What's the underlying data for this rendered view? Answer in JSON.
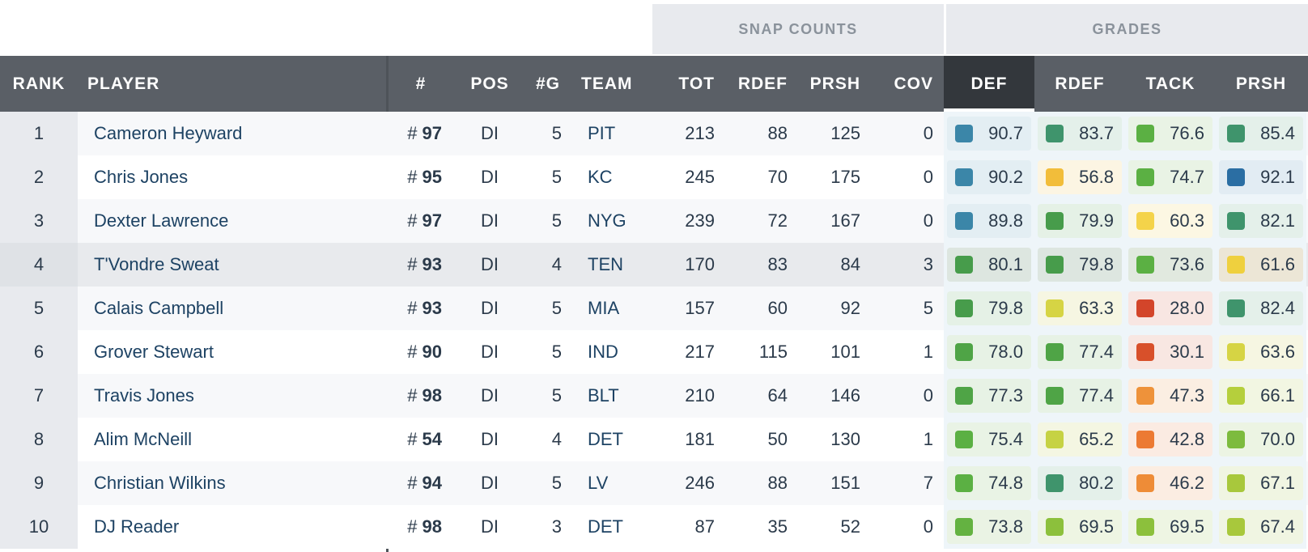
{
  "group_headers": {
    "snap_counts": "SNAP COUNTS",
    "grades": "GRADES"
  },
  "columns": {
    "rank": "RANK",
    "player": "PLAYER",
    "number": "#",
    "pos": "POS",
    "games": "#G",
    "team": "TEAM",
    "tot": "TOT",
    "rdef": "RDEF",
    "prsh": "PRSH",
    "cov": "COV",
    "g_def": "DEF",
    "g_rdef": "RDEF",
    "g_tack": "TACK",
    "g_prsh": "PRSH"
  },
  "active_sort_column": "DEF",
  "rows": [
    {
      "rank": "1",
      "player": "Cameron Heyward",
      "hash": "#",
      "number": "97",
      "pos": "DI",
      "games": "5",
      "team": "PIT",
      "tot": "213",
      "rdef": "88",
      "prsh": "125",
      "cov": "0",
      "grades": [
        {
          "v": "90.7",
          "c": "#3b86a8",
          "bg": "#e3eef3"
        },
        {
          "v": "83.7",
          "c": "#3f946c",
          "bg": "#e4f0ea"
        },
        {
          "v": "76.6",
          "c": "#5bb043",
          "bg": "#e9f3e5"
        },
        {
          "v": "85.4",
          "c": "#3f946c",
          "bg": "#e4f0ea"
        }
      ]
    },
    {
      "rank": "2",
      "player": "Chris Jones",
      "hash": "#",
      "number": "95",
      "pos": "DI",
      "games": "5",
      "team": "KC",
      "tot": "245",
      "rdef": "70",
      "prsh": "175",
      "cov": "0",
      "grades": [
        {
          "v": "90.2",
          "c": "#3b86a8",
          "bg": "#e3eef3"
        },
        {
          "v": "56.8",
          "c": "#f2bd3a",
          "bg": "#fcf5e3"
        },
        {
          "v": "74.7",
          "c": "#5bb043",
          "bg": "#e9f3e5"
        },
        {
          "v": "92.1",
          "c": "#2b6ea3",
          "bg": "#e2ecf3"
        }
      ]
    },
    {
      "rank": "3",
      "player": "Dexter Lawrence",
      "hash": "#",
      "number": "97",
      "pos": "DI",
      "games": "5",
      "team": "NYG",
      "tot": "239",
      "rdef": "72",
      "prsh": "167",
      "cov": "0",
      "grades": [
        {
          "v": "89.8",
          "c": "#3b86a8",
          "bg": "#e3eef3"
        },
        {
          "v": "79.9",
          "c": "#479c4b",
          "bg": "#e5f1e6"
        },
        {
          "v": "60.3",
          "c": "#f4d34a",
          "bg": "#fcf7e3"
        },
        {
          "v": "82.1",
          "c": "#3f946c",
          "bg": "#e4f0ea"
        }
      ]
    },
    {
      "rank": "4",
      "player": "T'Vondre Sweat",
      "hash": "#",
      "number": "93",
      "pos": "DI",
      "games": "4",
      "team": "TEN",
      "tot": "170",
      "rdef": "83",
      "prsh": "84",
      "cov": "3",
      "grades": [
        {
          "v": "80.1",
          "c": "#479c4b",
          "bg": "#dde6e0"
        },
        {
          "v": "79.8",
          "c": "#479c4b",
          "bg": "#dde6e0"
        },
        {
          "v": "73.6",
          "c": "#5bb043",
          "bg": "#e1e9df"
        },
        {
          "v": "61.6",
          "c": "#efd03e",
          "bg": "#ece6d6"
        }
      ]
    },
    {
      "rank": "5",
      "player": "Calais Campbell",
      "hash": "#",
      "number": "93",
      "pos": "DI",
      "games": "5",
      "team": "MIA",
      "tot": "157",
      "rdef": "60",
      "prsh": "92",
      "cov": "5",
      "grades": [
        {
          "v": "79.8",
          "c": "#479c4b",
          "bg": "#e5f1e6"
        },
        {
          "v": "63.3",
          "c": "#d6d444",
          "bg": "#f6f6e2"
        },
        {
          "v": "28.0",
          "c": "#d3452a",
          "bg": "#f8e6e2"
        },
        {
          "v": "82.4",
          "c": "#3f946c",
          "bg": "#e4f0ea"
        }
      ]
    },
    {
      "rank": "6",
      "player": "Grover Stewart",
      "hash": "#",
      "number": "90",
      "pos": "DI",
      "games": "5",
      "team": "IND",
      "tot": "217",
      "rdef": "115",
      "prsh": "101",
      "cov": "1",
      "grades": [
        {
          "v": "78.0",
          "c": "#4fa446",
          "bg": "#e7f2e5"
        },
        {
          "v": "77.4",
          "c": "#4fa446",
          "bg": "#e7f2e5"
        },
        {
          "v": "30.1",
          "c": "#d8502a",
          "bg": "#f8e7e2"
        },
        {
          "v": "63.6",
          "c": "#d6d444",
          "bg": "#f6f6e2"
        }
      ]
    },
    {
      "rank": "7",
      "player": "Travis Jones",
      "hash": "#",
      "number": "98",
      "pos": "DI",
      "games": "5",
      "team": "BLT",
      "tot": "210",
      "rdef": "64",
      "prsh": "146",
      "cov": "0",
      "grades": [
        {
          "v": "77.3",
          "c": "#4fa446",
          "bg": "#e7f2e5"
        },
        {
          "v": "77.4",
          "c": "#4fa446",
          "bg": "#e7f2e5"
        },
        {
          "v": "47.3",
          "c": "#ee923a",
          "bg": "#fbeee2"
        },
        {
          "v": "66.1",
          "c": "#b5cf3c",
          "bg": "#f2f6e2"
        }
      ]
    },
    {
      "rank": "8",
      "player": "Alim McNeill",
      "hash": "#",
      "number": "54",
      "pos": "DI",
      "games": "4",
      "team": "DET",
      "tot": "181",
      "rdef": "50",
      "prsh": "130",
      "cov": "1",
      "grades": [
        {
          "v": "75.4",
          "c": "#5bb043",
          "bg": "#e9f3e5"
        },
        {
          "v": "65.2",
          "c": "#c6d244",
          "bg": "#f4f6e2"
        },
        {
          "v": "42.8",
          "c": "#ec7a33",
          "bg": "#fbebe2"
        },
        {
          "v": "70.0",
          "c": "#7dbb3e",
          "bg": "#ecf4e3"
        }
      ]
    },
    {
      "rank": "9",
      "player": "Christian Wilkins",
      "hash": "#",
      "number": "94",
      "pos": "DI",
      "games": "5",
      "team": "LV",
      "tot": "246",
      "rdef": "88",
      "prsh": "151",
      "cov": "7",
      "grades": [
        {
          "v": "74.8",
          "c": "#5bb043",
          "bg": "#e9f3e5"
        },
        {
          "v": "80.2",
          "c": "#3f946c",
          "bg": "#e4f0ea"
        },
        {
          "v": "46.2",
          "c": "#ee8c37",
          "bg": "#fbede2"
        },
        {
          "v": "67.1",
          "c": "#a8c83c",
          "bg": "#f0f5e2"
        }
      ]
    },
    {
      "rank": "10",
      "player": "DJ Reader",
      "hash": "#",
      "number": "98",
      "pos": "DI",
      "games": "3",
      "team": "DET",
      "tot": "87",
      "rdef": "35",
      "prsh": "52",
      "cov": "0",
      "grades": [
        {
          "v": "73.8",
          "c": "#64b241",
          "bg": "#eaf3e4"
        },
        {
          "v": "69.5",
          "c": "#8cc03c",
          "bg": "#eef5e3"
        },
        {
          "v": "69.5",
          "c": "#8cc03c",
          "bg": "#eef5e3"
        },
        {
          "v": "67.4",
          "c": "#a8c83c",
          "bg": "#f0f5e2"
        }
      ]
    }
  ],
  "highlighted_row_rank": "4"
}
